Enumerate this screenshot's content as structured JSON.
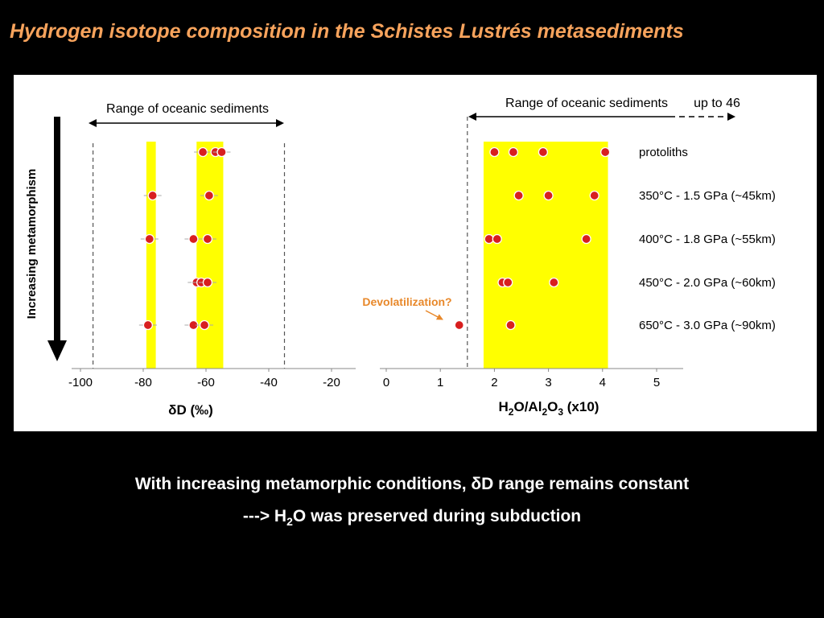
{
  "title": "Hydrogen isotope composition in the Schistes Lustrés metasediments",
  "caption_line1": "With increasing metamorphic conditions, δD range remains constant",
  "caption_line2_pre": "---> H",
  "caption_line2_sub": "2",
  "caption_line2_post": "O was preserved during subduction",
  "colors": {
    "band": "#ffff00",
    "point": "#d81f1f",
    "annotation": "#e8882a",
    "title": "#f7a35c"
  },
  "arrow_label": "Increasing metamorphism",
  "left_panel": {
    "range_label": "Range of oceanic sediments",
    "xlabel": "δD (‰)",
    "ticks": [
      "-100",
      "-80",
      "-60",
      "-40",
      "-20"
    ]
  },
  "right_panel": {
    "range_label": "Range of oceanic sediments",
    "range_extra": "up to 46",
    "xlabel_parts": [
      "H",
      "2",
      "O/Al",
      "2",
      "O",
      "3",
      " (x10)"
    ],
    "ticks": [
      "0",
      "1",
      "2",
      "3",
      "4",
      "5"
    ],
    "annotation": "Devolatilization?"
  },
  "row_labels": [
    "protoliths",
    "350°C - 1.5 GPa (~45km)",
    "400°C - 1.8 GPa (~55km)",
    "450°C - 2.0 GPa (~60km)",
    "650°C - 3.0 GPa (~90km)"
  ],
  "chart_data": [
    {
      "type": "scatter",
      "xlabel": "δD (‰)",
      "xlim": [
        -100,
        -20
      ],
      "range_dashed": [
        -96,
        -35
      ],
      "bands": [
        [
          -79,
          -76
        ],
        [
          -63,
          -54.5
        ]
      ],
      "rows": [
        "protoliths",
        "350°C - 1.5 GPa (~45km)",
        "400°C - 1.8 GPa (~55km)",
        "450°C - 2.0 GPa (~60km)",
        "650°C - 3.0 GPa (~90km)"
      ],
      "series": [
        {
          "row": 0,
          "x": [
            -61,
            -57,
            -55
          ]
        },
        {
          "row": 1,
          "x": [
            -77,
            -59
          ]
        },
        {
          "row": 2,
          "x": [
            -78,
            -64,
            -59.5
          ]
        },
        {
          "row": 3,
          "x": [
            -63,
            -61.5,
            -59.5
          ]
        },
        {
          "row": 4,
          "x": [
            -78.5,
            -64,
            -60.5
          ]
        }
      ]
    },
    {
      "type": "scatter",
      "xlabel": "H2O/Al2O3 (x10)",
      "xlim": [
        0,
        5
      ],
      "range_dashed_start": 1.5,
      "bands": [
        [
          1.8,
          4.1
        ]
      ],
      "rows": [
        "protoliths",
        "350°C - 1.5 GPa (~45km)",
        "400°C - 1.8 GPa (~55km)",
        "450°C - 2.0 GPa (~60km)",
        "650°C - 3.0 GPa (~90km)"
      ],
      "series": [
        {
          "row": 0,
          "x": [
            2.0,
            2.35,
            2.9,
            4.05
          ]
        },
        {
          "row": 1,
          "x": [
            2.45,
            3.0,
            3.85
          ]
        },
        {
          "row": 2,
          "x": [
            1.9,
            2.05,
            3.7
          ]
        },
        {
          "row": 3,
          "x": [
            2.15,
            2.25,
            3.1
          ]
        },
        {
          "row": 4,
          "x": [
            1.35,
            2.3
          ]
        }
      ]
    }
  ]
}
